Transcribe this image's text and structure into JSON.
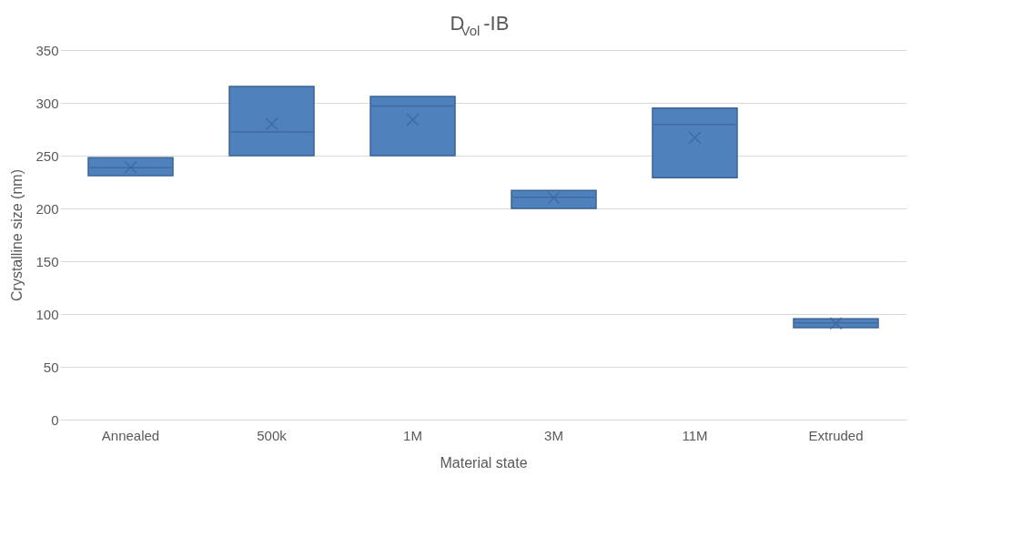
{
  "chart_data": {
    "type": "box",
    "title": "D$_{Vol}$-IB",
    "xlabel": "Material state",
    "ylabel": "Crystalline size (nm)",
    "categories": [
      "Annealed",
      "500k",
      "1M",
      "3M",
      "11M",
      "Extruded"
    ],
    "series": [
      {
        "color": "#4f81bd",
        "boxes": [
          {
            "low": 231,
            "q1": 231,
            "median": 238.5,
            "q3": 248,
            "high": 248,
            "mean": 239
          },
          {
            "low": 250,
            "q1": 250,
            "median": 272.5,
            "q3": 315.5,
            "high": 315.5,
            "mean": 280
          },
          {
            "low": 250,
            "q1": 250,
            "median": 297,
            "q3": 306,
            "high": 306,
            "mean": 284
          },
          {
            "low": 200,
            "q1": 200,
            "median": 210.5,
            "q3": 217,
            "high": 217,
            "mean": 210
          },
          {
            "low": 229,
            "q1": 229,
            "median": 279.5,
            "q3": 295,
            "high": 295,
            "mean": 267
          },
          {
            "low": 87,
            "q1": 87,
            "median": 91.5,
            "q3": 95.5,
            "high": 95.5,
            "mean": 91
          }
        ]
      }
    ],
    "ylim": [
      0,
      350
    ],
    "yticks": [
      0,
      50,
      100,
      150,
      200,
      250,
      300,
      350
    ],
    "grid": "y"
  }
}
